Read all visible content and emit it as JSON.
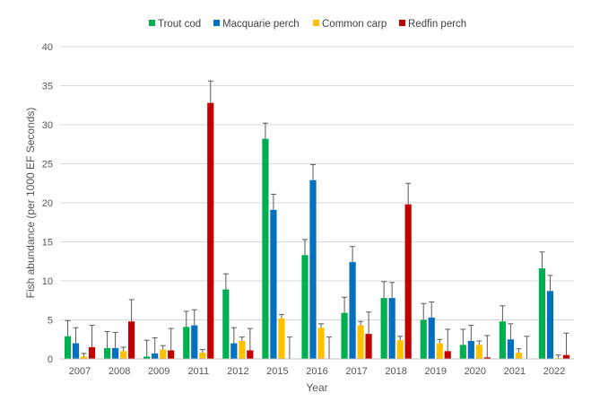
{
  "chart_data": {
    "type": "bar",
    "title": "",
    "xlabel": "Year",
    "ylabel": "Fish abundance (per 1000 EF Seconds)",
    "ylim": [
      0,
      40
    ],
    "yticks": [
      0,
      5,
      10,
      15,
      20,
      25,
      30,
      35,
      40
    ],
    "grid": true,
    "legend_position": "top",
    "error_bars": true,
    "categories": [
      "2007",
      "2008",
      "2009",
      "2011",
      "2012",
      "2015",
      "2016",
      "2017",
      "2018",
      "2019",
      "2020",
      "2021",
      "2022"
    ],
    "series": [
      {
        "name": "Trout cod",
        "color": "#00B050",
        "values": [
          2.9,
          1.4,
          0.3,
          4.1,
          8.9,
          28.2,
          13.3,
          5.9,
          7.8,
          5.0,
          1.8,
          4.8,
          11.6
        ],
        "errors": [
          2.0,
          2.1,
          2.1,
          2.0,
          2.0,
          2.0,
          2.0,
          2.0,
          2.1,
          2.1,
          2.0,
          2.0,
          2.1
        ]
      },
      {
        "name": "Macquarie perch",
        "color": "#0070C0",
        "values": [
          2.0,
          1.4,
          0.7,
          4.3,
          2.0,
          19.1,
          22.9,
          12.4,
          7.8,
          5.3,
          2.3,
          2.5,
          8.7
        ],
        "errors": [
          2.0,
          2.0,
          2.0,
          2.0,
          2.0,
          2.0,
          2.0,
          2.0,
          2.0,
          2.0,
          2.0,
          2.0,
          2.0
        ]
      },
      {
        "name": "Common carp",
        "color": "#FFC000",
        "values": [
          0.3,
          1.0,
          1.2,
          0.8,
          2.3,
          5.2,
          4.0,
          4.3,
          2.4,
          2.0,
          1.8,
          0.8,
          0.1
        ],
        "errors": [
          0.4,
          0.5,
          0.5,
          0.4,
          0.5,
          0.5,
          0.5,
          0.5,
          0.5,
          0.5,
          0.5,
          0.5,
          0.4
        ]
      },
      {
        "name": "Redfin perch",
        "color": "#C00000",
        "values": [
          1.5,
          4.8,
          1.1,
          32.8,
          1.1,
          0.0,
          0.0,
          3.2,
          19.8,
          1.0,
          0.2,
          0.0,
          0.5
        ],
        "errors": [
          2.8,
          2.8,
          2.8,
          2.8,
          2.8,
          2.8,
          2.8,
          2.8,
          2.7,
          2.8,
          2.8,
          2.9,
          2.8
        ]
      }
    ]
  }
}
